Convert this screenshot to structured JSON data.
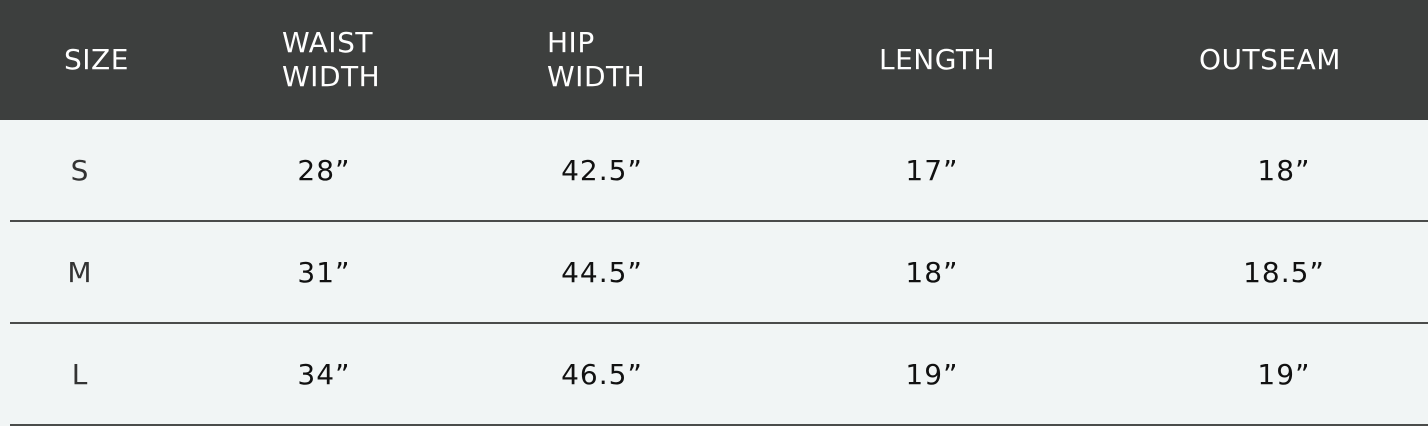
{
  "table": {
    "headers": [
      "SIZE",
      "WAIST\nWIDTH",
      "HIP\nWIDTH",
      "LENGTH",
      "OUTSEAM"
    ],
    "rows": [
      [
        "S",
        "28”",
        "42.5”",
        "17”",
        "18”"
      ],
      [
        "M",
        "31”",
        "44.5”",
        "18”",
        "18.5”"
      ],
      [
        "L",
        "34”",
        "46.5”",
        "19”",
        "19”"
      ]
    ]
  },
  "colors": {
    "header_background": "#3d3f3e",
    "header_text": "#ffffff",
    "body_background": "#f1f5f5",
    "divider": "#4a4c4b",
    "body_text": "#111111"
  }
}
